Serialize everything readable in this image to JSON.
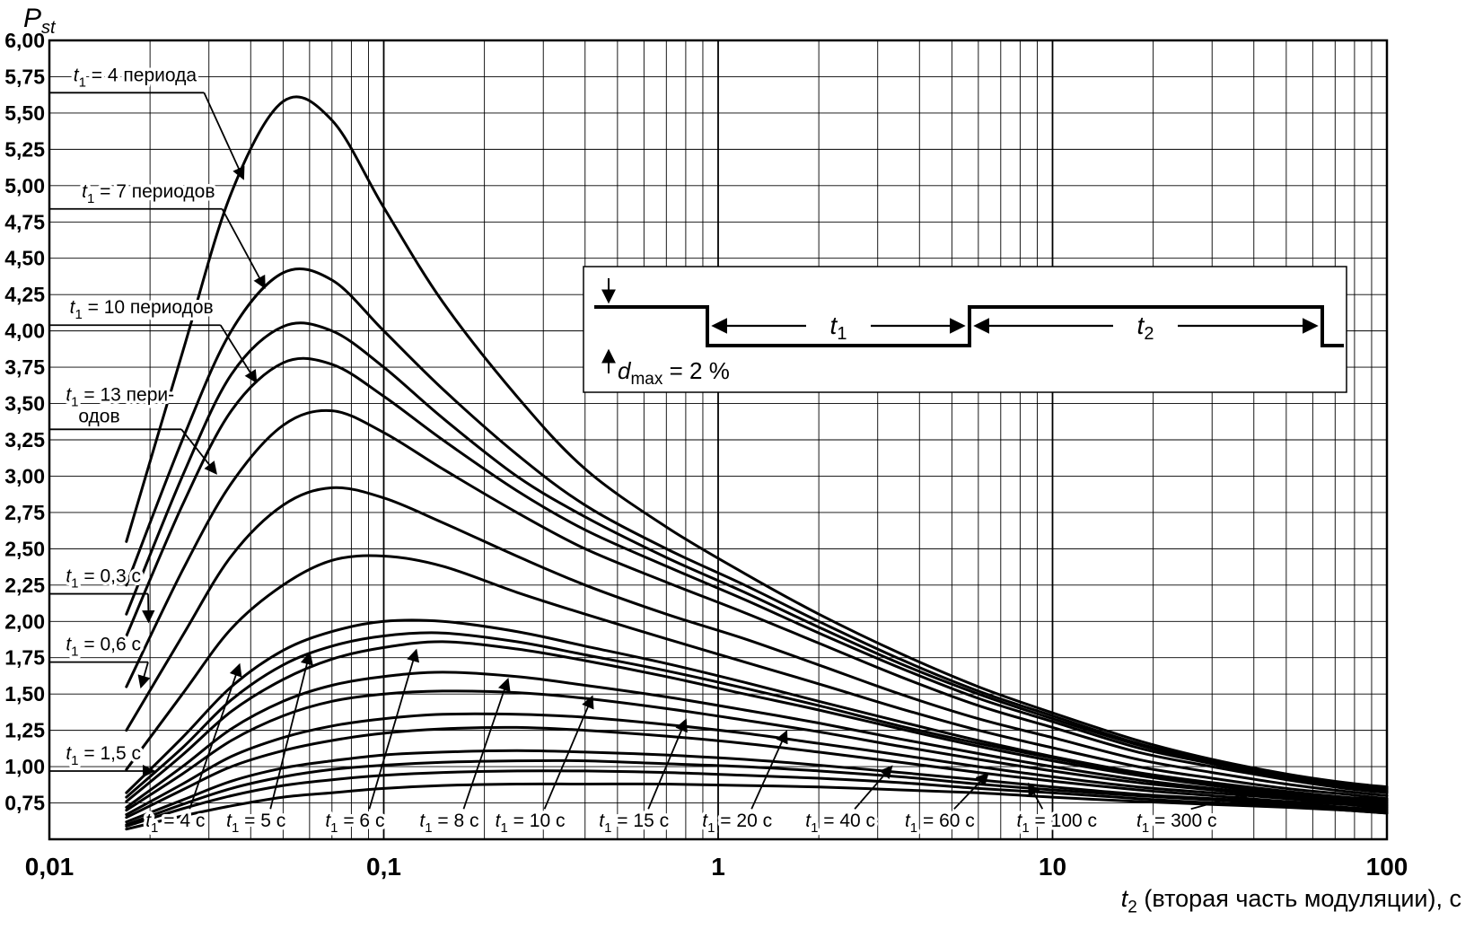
{
  "chart_data": {
    "type": "line",
    "x_scale": "log",
    "xlim": [
      0.01,
      100
    ],
    "ylim": [
      0.5,
      6.0
    ],
    "y_grid_step": 0.25,
    "grid": true,
    "legend": "none (curves labeled by arrows)",
    "ylabel": {
      "var": "P",
      "sub": "st"
    },
    "xlabel": {
      "var": "t",
      "sub": "2",
      "rest": " (вторая часть модуляции), с"
    },
    "x_ticks": [
      {
        "v": 0.01,
        "label": "0,01"
      },
      {
        "v": 0.1,
        "label": "0,1"
      },
      {
        "v": 1,
        "label": "1"
      },
      {
        "v": 10,
        "label": "10"
      },
      {
        "v": 100,
        "label": "100"
      }
    ],
    "y_ticks": [
      {
        "v": 6.0,
        "label": "6,00"
      },
      {
        "v": 5.75,
        "label": "5,75"
      },
      {
        "v": 5.5,
        "label": "5,50"
      },
      {
        "v": 5.25,
        "label": "5,25"
      },
      {
        "v": 5.0,
        "label": "5,00"
      },
      {
        "v": 4.75,
        "label": "4,75"
      },
      {
        "v": 4.5,
        "label": "4,50"
      },
      {
        "v": 4.25,
        "label": "4,25"
      },
      {
        "v": 4.0,
        "label": "4,00"
      },
      {
        "v": 3.75,
        "label": "3,75"
      },
      {
        "v": 3.5,
        "label": "3,50"
      },
      {
        "v": 3.25,
        "label": "3,25"
      },
      {
        "v": 3.0,
        "label": "3,00"
      },
      {
        "v": 2.75,
        "label": "2,75"
      },
      {
        "v": 2.5,
        "label": "2,50"
      },
      {
        "v": 2.25,
        "label": "2,25"
      },
      {
        "v": 2.0,
        "label": "2,00"
      },
      {
        "v": 1.75,
        "label": "1,75"
      },
      {
        "v": 1.5,
        "label": "1,50"
      },
      {
        "v": 1.25,
        "label": "1,25"
      },
      {
        "v": 1.0,
        "label": "1,00"
      },
      {
        "v": 0.75,
        "label": "0,75"
      }
    ],
    "x": [
      0.017,
      0.025,
      0.035,
      0.05,
      0.07,
      0.1,
      0.15,
      0.25,
      0.4,
      0.7,
      1.2,
      2,
      3.5,
      6,
      10,
      18,
      30,
      50,
      75,
      100
    ],
    "series": [
      {
        "label": "t₁ = 4 периода",
        "y": [
          2.55,
          3.85,
          4.95,
          5.58,
          5.45,
          4.85,
          4.2,
          3.55,
          3.05,
          2.65,
          2.33,
          2.05,
          1.78,
          1.55,
          1.37,
          1.18,
          1.05,
          0.95,
          0.89,
          0.86
        ],
        "annotation": {
          "side": "left",
          "lx": 0.0118,
          "ly": 5.72,
          "tx": 0.038,
          "ty": 5.05
        }
      },
      {
        "label": "t₁ = 7 периодов",
        "y": [
          2.25,
          3.25,
          4.0,
          4.4,
          4.35,
          4.0,
          3.6,
          3.15,
          2.8,
          2.5,
          2.25,
          2.0,
          1.74,
          1.52,
          1.35,
          1.16,
          1.04,
          0.94,
          0.88,
          0.85
        ],
        "annotation": {
          "side": "left",
          "lx": 0.0125,
          "ly": 4.92,
          "tx": 0.044,
          "ty": 4.3
        }
      },
      {
        "label": "t₁ = 10 периодов",
        "y": [
          2.05,
          3.0,
          3.7,
          4.03,
          4.0,
          3.75,
          3.4,
          3.0,
          2.72,
          2.44,
          2.2,
          1.96,
          1.71,
          1.5,
          1.33,
          1.15,
          1.03,
          0.93,
          0.87,
          0.84
        ],
        "annotation": {
          "side": "left",
          "lx": 0.0115,
          "ly": 4.12,
          "tx": 0.0415,
          "ty": 3.65
        }
      },
      {
        "label": "t₁ = 13 пери-\nодов",
        "y": [
          1.9,
          2.8,
          3.45,
          3.78,
          3.77,
          3.55,
          3.25,
          2.9,
          2.63,
          2.38,
          2.15,
          1.92,
          1.68,
          1.47,
          1.31,
          1.13,
          1.02,
          0.92,
          0.86,
          0.83
        ],
        "annotation": {
          "side": "left",
          "lx": 0.0112,
          "ly": 3.52,
          "tx": 0.0315,
          "ty": 3.02
        }
      },
      {
        "label": "t₁ = 0,3 с",
        "y": [
          1.55,
          2.35,
          2.95,
          3.35,
          3.45,
          3.3,
          3.05,
          2.75,
          2.5,
          2.27,
          2.06,
          1.85,
          1.62,
          1.42,
          1.27,
          1.1,
          1.0,
          0.91,
          0.85,
          0.82
        ],
        "annotation": {
          "side": "left",
          "lx": 0.0112,
          "ly": 2.27,
          "tx": 0.0198,
          "ty": 2.0
        }
      },
      {
        "label": "t₁ = 0,6 с",
        "y": [
          1.25,
          1.9,
          2.45,
          2.8,
          2.92,
          2.85,
          2.68,
          2.45,
          2.25,
          2.05,
          1.88,
          1.7,
          1.5,
          1.33,
          1.2,
          1.05,
          0.96,
          0.88,
          0.83,
          0.8
        ],
        "annotation": {
          "side": "left",
          "lx": 0.0112,
          "ly": 1.8,
          "tx": 0.0188,
          "ty": 1.55
        }
      },
      {
        "label": "t₁ = 1,5 с",
        "y": [
          0.98,
          1.5,
          1.95,
          2.25,
          2.42,
          2.45,
          2.38,
          2.2,
          2.05,
          1.88,
          1.72,
          1.57,
          1.4,
          1.25,
          1.13,
          1.0,
          0.92,
          0.85,
          0.81,
          0.78
        ],
        "annotation": {
          "side": "left",
          "lx": 0.0112,
          "ly": 1.05,
          "tx": 0.0205,
          "ty": 0.97
        }
      },
      {
        "label": "t₁ = 4 с",
        "y": [
          0.82,
          1.2,
          1.55,
          1.8,
          1.93,
          2.0,
          2.0,
          1.93,
          1.83,
          1.71,
          1.58,
          1.45,
          1.31,
          1.18,
          1.07,
          0.96,
          0.89,
          0.83,
          0.79,
          0.77
        ],
        "annotation": {
          "side": "bottom",
          "lx": 0.0238,
          "ly": 0.585,
          "tx": 0.037,
          "ty": 1.7
        }
      },
      {
        "label": "t₁ = 5 с",
        "y": [
          0.79,
          1.13,
          1.46,
          1.7,
          1.83,
          1.9,
          1.92,
          1.86,
          1.77,
          1.66,
          1.54,
          1.42,
          1.28,
          1.16,
          1.06,
          0.95,
          0.88,
          0.82,
          0.78,
          0.76
        ],
        "annotation": {
          "side": "bottom",
          "lx": 0.0415,
          "ly": 0.585,
          "tx": 0.06,
          "ty": 1.78
        }
      },
      {
        "label": "t₁ = 6 с",
        "y": [
          0.76,
          1.08,
          1.38,
          1.6,
          1.74,
          1.82,
          1.86,
          1.81,
          1.73,
          1.62,
          1.5,
          1.39,
          1.26,
          1.14,
          1.04,
          0.94,
          0.87,
          0.81,
          0.78,
          0.75
        ],
        "annotation": {
          "side": "bottom",
          "lx": 0.082,
          "ly": 0.585,
          "tx": 0.125,
          "ty": 1.8
        }
      },
      {
        "label": "t₁ = 8 с",
        "y": [
          0.72,
          1.0,
          1.26,
          1.45,
          1.56,
          1.62,
          1.65,
          1.62,
          1.56,
          1.48,
          1.39,
          1.3,
          1.19,
          1.09,
          1.0,
          0.91,
          0.85,
          0.8,
          0.77,
          0.74
        ],
        "annotation": {
          "side": "bottom",
          "lx": 0.157,
          "ly": 0.585,
          "tx": 0.235,
          "ty": 1.6
        }
      },
      {
        "label": "t₁ = 10 с",
        "y": [
          0.7,
          0.95,
          1.18,
          1.35,
          1.45,
          1.5,
          1.52,
          1.51,
          1.47,
          1.4,
          1.32,
          1.24,
          1.14,
          1.05,
          0.97,
          0.89,
          0.84,
          0.79,
          0.76,
          0.73
        ],
        "annotation": {
          "side": "bottom",
          "lx": 0.274,
          "ly": 0.585,
          "tx": 0.42,
          "ty": 1.48
        }
      },
      {
        "label": "t₁ = 15 с",
        "y": [
          0.67,
          0.88,
          1.07,
          1.2,
          1.28,
          1.33,
          1.36,
          1.36,
          1.34,
          1.29,
          1.23,
          1.16,
          1.08,
          1.0,
          0.93,
          0.86,
          0.82,
          0.78,
          0.75,
          0.72
        ],
        "annotation": {
          "side": "bottom",
          "lx": 0.56,
          "ly": 0.585,
          "tx": 0.8,
          "ty": 1.32
        }
      },
      {
        "label": "t₁ = 20 с",
        "y": [
          0.65,
          0.84,
          1.0,
          1.11,
          1.18,
          1.23,
          1.26,
          1.27,
          1.25,
          1.21,
          1.16,
          1.1,
          1.03,
          0.96,
          0.9,
          0.84,
          0.8,
          0.76,
          0.74,
          0.71
        ],
        "annotation": {
          "side": "bottom",
          "lx": 1.14,
          "ly": 0.585,
          "tx": 1.6,
          "ty": 1.24
        }
      },
      {
        "label": "t₁ = 40 с",
        "y": [
          0.62,
          0.77,
          0.9,
          0.99,
          1.04,
          1.08,
          1.1,
          1.11,
          1.1,
          1.08,
          1.05,
          1.01,
          0.96,
          0.91,
          0.86,
          0.81,
          0.78,
          0.75,
          0.72,
          0.7
        ],
        "annotation": {
          "side": "bottom",
          "lx": 2.32,
          "ly": 0.585,
          "tx": 3.3,
          "ty": 1.0
        }
      },
      {
        "label": "t₁ = 60 с",
        "y": [
          0.6,
          0.74,
          0.85,
          0.93,
          0.98,
          1.01,
          1.03,
          1.04,
          1.04,
          1.02,
          1.0,
          0.97,
          0.93,
          0.88,
          0.84,
          0.8,
          0.77,
          0.74,
          0.71,
          0.69
        ],
        "annotation": {
          "side": "bottom",
          "lx": 4.6,
          "ly": 0.585,
          "tx": 6.4,
          "ty": 0.95
        }
      },
      {
        "label": "t₁ = 100 с",
        "y": [
          0.59,
          0.71,
          0.8,
          0.87,
          0.91,
          0.94,
          0.96,
          0.97,
          0.97,
          0.96,
          0.94,
          0.92,
          0.89,
          0.85,
          0.82,
          0.78,
          0.75,
          0.73,
          0.7,
          0.68
        ],
        "annotation": {
          "side": "bottom",
          "lx": 10.3,
          "ly": 0.585,
          "tx": 8.5,
          "ty": 0.88
        }
      },
      {
        "label": "t₁ = 300 с",
        "y": [
          0.57,
          0.66,
          0.73,
          0.79,
          0.82,
          0.85,
          0.87,
          0.88,
          0.88,
          0.88,
          0.87,
          0.86,
          0.84,
          0.82,
          0.79,
          0.76,
          0.74,
          0.72,
          0.7,
          0.68
        ],
        "annotation": {
          "side": "bottom",
          "lx": 23.5,
          "ly": 0.585,
          "tx": 39,
          "ty": 0.82
        }
      }
    ],
    "inset": {
      "dmax": {
        "var": "d",
        "sub": "max",
        "rest": " = 2 %"
      },
      "t1": {
        "var": "t",
        "sub": "1"
      },
      "t2": {
        "var": "t",
        "sub": "2"
      }
    },
    "colors": {
      "curves": "#000000",
      "grid": "#000000",
      "background": "#ffffff"
    }
  }
}
